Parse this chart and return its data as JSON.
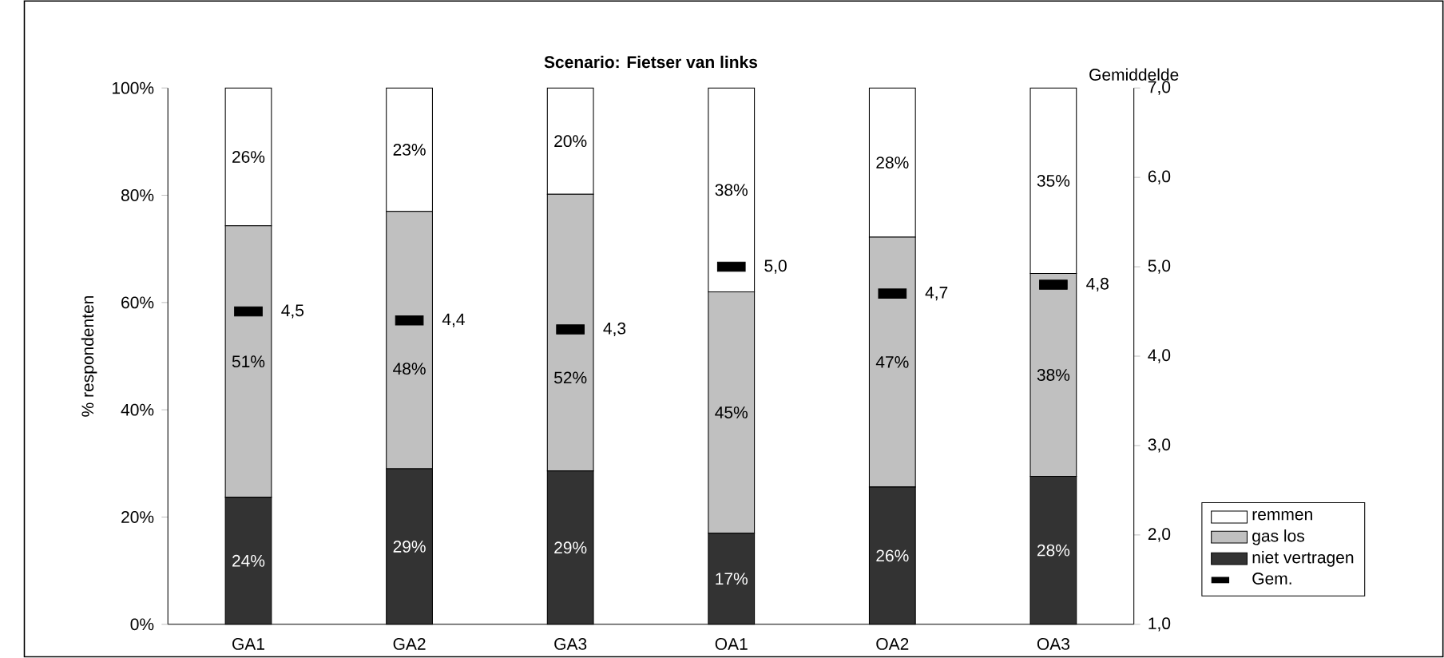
{
  "chart_data": {
    "type": "bar",
    "stacked": true,
    "title": "Scenario: Fietser van links",
    "ylabel": "% respondenten",
    "y2label": "Gemiddelde",
    "categories": [
      "GA1",
      "GA2",
      "GA3",
      "OA1",
      "OA2",
      "OA3"
    ],
    "series": [
      {
        "name": "niet vertragen",
        "color": "#333333",
        "values": [
          23.7,
          29,
          28.6,
          17,
          25.6,
          27.6
        ],
        "value_labels": [
          "24%",
          "29%",
          "29%",
          "17%",
          "26%",
          "28%"
        ]
      },
      {
        "name": "gas los",
        "color": "#c0c0c0",
        "values": [
          50.6,
          48,
          51.6,
          45,
          46.6,
          37.8
        ],
        "value_labels": [
          "51%",
          "48%",
          "52%",
          "45%",
          "47%",
          "38%"
        ]
      },
      {
        "name": "remmen",
        "color": "#ffffff",
        "values": [
          25.7,
          23,
          19.8,
          38,
          27.8,
          34.6
        ],
        "value_labels": [
          "26%",
          "23%",
          "20%",
          "38%",
          "28%",
          "35%"
        ]
      },
      {
        "name": "Gem.",
        "type": "scatter",
        "axis": "y2",
        "color": "#000000",
        "values": [
          4.5,
          4.4,
          4.3,
          5.0,
          4.7,
          4.8
        ],
        "value_labels": [
          "4,5",
          "4,4",
          "4,3",
          "5,0",
          "4,7",
          "4,8"
        ]
      }
    ],
    "ylim": [
      0,
      100
    ],
    "yticks": [
      {
        "value": 0,
        "label": "0%"
      },
      {
        "value": 20,
        "label": "20%"
      },
      {
        "value": 40,
        "label": "40%"
      },
      {
        "value": 60,
        "label": "60%"
      },
      {
        "value": 80,
        "label": "80%"
      },
      {
        "value": 100,
        "label": "100%"
      }
    ],
    "y2lim": [
      1,
      7
    ],
    "y2ticks": [
      {
        "value": 1,
        "label": "1,0"
      },
      {
        "value": 2,
        "label": "2,0"
      },
      {
        "value": 3,
        "label": "3,0"
      },
      {
        "value": 4,
        "label": "4,0"
      },
      {
        "value": 5,
        "label": "5,0"
      },
      {
        "value": 6,
        "label": "6,0"
      },
      {
        "value": 7,
        "label": "7,0"
      }
    ],
    "legend": "right"
  }
}
